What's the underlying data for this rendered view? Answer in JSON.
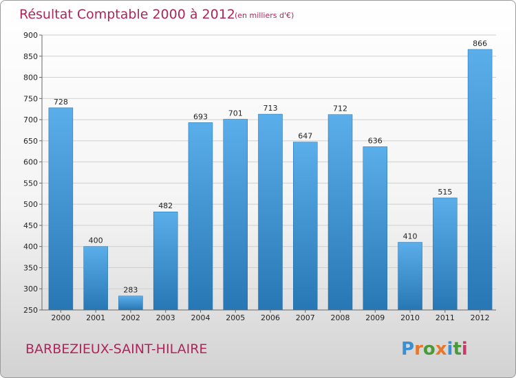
{
  "page": {
    "city": "BARBEZIEUX-SAINT-HILAIRE",
    "brand": "Proxiti"
  },
  "colors": {
    "bar_top": "#5aaeea",
    "bar_bottom": "#2877b5",
    "title": "#b0245a",
    "grid": "#cfcfcf"
  },
  "chart_data": {
    "type": "bar",
    "title": "Résultat Comptable 2000 à 2012",
    "subtitle": "(en milliers d'€)",
    "xlabel": "",
    "ylabel": "",
    "categories": [
      "2000",
      "2001",
      "2002",
      "2003",
      "2004",
      "2005",
      "2006",
      "2007",
      "2008",
      "2009",
      "2010",
      "2011",
      "2012"
    ],
    "values": [
      728,
      400,
      283,
      482,
      693,
      701,
      713,
      647,
      712,
      636,
      410,
      515,
      866
    ],
    "ylim": [
      250,
      900
    ],
    "yticks": [
      250,
      300,
      350,
      400,
      450,
      500,
      550,
      600,
      650,
      700,
      750,
      800,
      850,
      900
    ],
    "grid": true,
    "legend": "none"
  }
}
